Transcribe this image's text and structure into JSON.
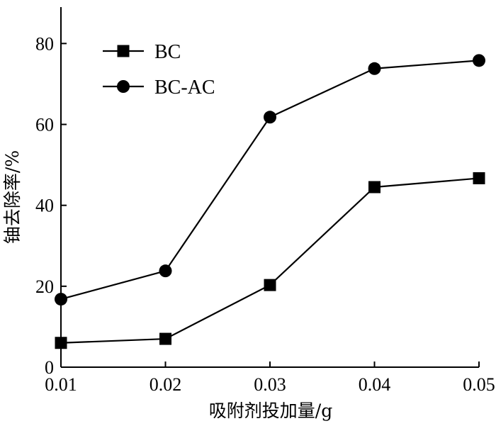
{
  "chart_data": {
    "type": "line",
    "xlabel": "吸附剂投加量/g",
    "ylabel": "铀去除率/%",
    "x": [
      0.01,
      0.02,
      0.03,
      0.04,
      0.05
    ],
    "x_tick_labels": [
      "0.01",
      "0.02",
      "0.03",
      "0.04",
      "0.05"
    ],
    "y_ticks": [
      0,
      20,
      40,
      60,
      80
    ],
    "y_tick_labels": [
      "0",
      "20",
      "40",
      "60",
      "80"
    ],
    "xlim": [
      0.01,
      0.05
    ],
    "ylim": [
      0,
      89
    ],
    "grid": false,
    "legend_position": "top-left",
    "series": [
      {
        "name": "BC",
        "marker": "square",
        "color": "#000000",
        "values": [
          6.0,
          7.0,
          20.3,
          44.5,
          46.7
        ]
      },
      {
        "name": "BC-AC",
        "marker": "circle",
        "color": "#000000",
        "values": [
          16.8,
          23.8,
          61.8,
          73.8,
          75.8
        ]
      }
    ]
  }
}
